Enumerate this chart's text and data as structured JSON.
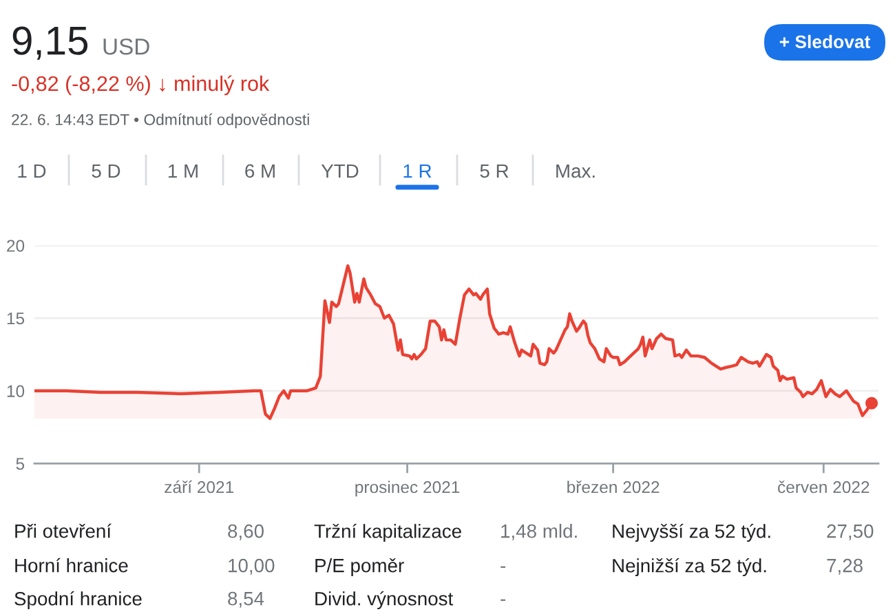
{
  "chart_data": [
    {
      "type": "other",
      "title": "9,15",
      "annotations": [
        "USD",
        "-0,82 (-8,22 %) ↓ minulý rok",
        "22. 6. 14:43 EDT • Odmítnutí odpovědnosti",
        "+ Sledovat",
        "1 D",
        "5 D",
        "1 M",
        "6 M",
        "YTD",
        "1 R",
        "5 R",
        "Max."
      ]
    },
    {
      "type": "area",
      "x": [
        "2021-06-21",
        "2021-07-05",
        "2021-07-20",
        "2021-08-05",
        "2021-08-24",
        "2021-09-10",
        "2021-09-25",
        "2021-09-28",
        "2021-09-30",
        "2021-10-02",
        "2021-10-04",
        "2021-10-06",
        "2021-10-08",
        "2021-10-10",
        "2021-10-11",
        "2021-10-18",
        "2021-10-22",
        "2021-10-24",
        "2021-10-26",
        "2021-10-28",
        "2021-10-29",
        "2021-10-31",
        "2021-11-01",
        "2021-11-03",
        "2021-11-05",
        "2021-11-06",
        "2021-11-08",
        "2021-11-09",
        "2021-11-10",
        "2021-11-12",
        "2021-11-13",
        "2021-11-15",
        "2021-11-17",
        "2021-11-19",
        "2021-11-21",
        "2021-11-23",
        "2021-11-25",
        "2021-11-27",
        "2021-11-28",
        "2021-11-29",
        "2021-12-02",
        "2021-12-03",
        "2021-12-04",
        "2021-12-05",
        "2021-12-07",
        "2021-12-09",
        "2021-12-11",
        "2021-12-13",
        "2021-12-15",
        "2021-12-16",
        "2021-12-17",
        "2021-12-18",
        "2021-12-20",
        "2021-12-22",
        "2021-12-24",
        "2021-12-26",
        "2021-12-28",
        "2021-12-30",
        "2021-12-31",
        "2022-01-02",
        "2022-01-03",
        "2022-01-05",
        "2022-01-06",
        "2022-01-08",
        "2022-01-10",
        "2022-01-12",
        "2022-01-14",
        "2022-01-15",
        "2022-01-17",
        "2022-01-19",
        "2022-01-20",
        "2022-01-22",
        "2022-01-24",
        "2022-01-25",
        "2022-01-27",
        "2022-01-28",
        "2022-01-30",
        "2022-01-31",
        "2022-02-01",
        "2022-02-03",
        "2022-02-04",
        "2022-02-06",
        "2022-02-08",
        "2022-02-09",
        "2022-02-10",
        "2022-02-11",
        "2022-02-13",
        "2022-02-14",
        "2022-02-16",
        "2022-02-17",
        "2022-02-18",
        "2022-02-19",
        "2022-02-21",
        "2022-02-23",
        "2022-02-25",
        "2022-02-26",
        "2022-02-28",
        "2022-03-01",
        "2022-03-03",
        "2022-03-04",
        "2022-03-06",
        "2022-03-08",
        "2022-03-10",
        "2022-03-12",
        "2022-03-13",
        "2022-03-14",
        "2022-03-15",
        "2022-03-17",
        "2022-03-18",
        "2022-03-20",
        "2022-03-22",
        "2022-03-24",
        "2022-03-27",
        "2022-03-28",
        "2022-03-30",
        "2022-03-31",
        "2022-04-02",
        "2022-04-04",
        "2022-04-07",
        "2022-04-10",
        "2022-04-13",
        "2022-04-17",
        "2022-04-19",
        "2022-04-22",
        "2022-04-24",
        "2022-04-26",
        "2022-04-29",
        "2022-05-01",
        "2022-05-03",
        "2022-05-04",
        "2022-05-07",
        "2022-05-09",
        "2022-05-10",
        "2022-05-12",
        "2022-05-13",
        "2022-05-14",
        "2022-05-16",
        "2022-05-19",
        "2022-05-20",
        "2022-05-22",
        "2022-05-23",
        "2022-05-25",
        "2022-05-27",
        "2022-05-29",
        "2022-05-31",
        "2022-06-02",
        "2022-06-04",
        "2022-06-06",
        "2022-06-08",
        "2022-06-11",
        "2022-06-14",
        "2022-06-16",
        "2022-06-18",
        "2022-06-20",
        "2022-06-22"
      ],
      "series": [
        {
          "type": "area",
          "color": "#e94235",
          "values": [
            10.0,
            10.0,
            9.9,
            9.9,
            9.8,
            9.9,
            10.0,
            10.0,
            8.4,
            8.1,
            8.8,
            9.6,
            10.0,
            9.5,
            10.0,
            10.0,
            10.2,
            11.0,
            16.2,
            14.7,
            16.1,
            15.8,
            16.0,
            17.3,
            18.6,
            18.1,
            16.1,
            16.7,
            16.1,
            17.7,
            17.1,
            16.6,
            16.0,
            15.8,
            15.0,
            15.2,
            14.6,
            12.8,
            13.5,
            12.5,
            12.4,
            12.2,
            12.5,
            12.2,
            12.5,
            12.9,
            14.8,
            14.8,
            14.4,
            13.5,
            14.2,
            13.5,
            13.5,
            13.2,
            15.0,
            16.6,
            17.0,
            16.6,
            16.7,
            16.3,
            16.6,
            17.0,
            15.3,
            14.3,
            13.9,
            14.0,
            13.9,
            14.4,
            13.3,
            12.4,
            12.8,
            12.6,
            12.4,
            13.2,
            12.8,
            11.9,
            11.8,
            12.0,
            12.9,
            12.6,
            12.8,
            13.5,
            14.2,
            14.4,
            15.3,
            14.8,
            14.1,
            14.3,
            14.8,
            14.6,
            13.8,
            13.3,
            12.9,
            12.2,
            12.0,
            12.9,
            12.4,
            12.3,
            12.3,
            11.8,
            12.0,
            12.3,
            12.6,
            12.9,
            13.2,
            13.7,
            12.4,
            13.5,
            12.9,
            13.6,
            13.9,
            13.6,
            13.5,
            12.4,
            12.5,
            12.3,
            12.8,
            12.4,
            12.4,
            12.3,
            11.9,
            11.5,
            11.6,
            11.7,
            11.8,
            12.3,
            12.0,
            11.9,
            12.0,
            11.7,
            12.5,
            12.3,
            11.7,
            11.4,
            10.7,
            11.0,
            10.8,
            10.9,
            10.2,
            9.9,
            9.6,
            9.9,
            9.8,
            10.1,
            10.7,
            9.6,
            10.1,
            9.8,
            9.6,
            10.0,
            9.3,
            9.1,
            8.3,
            8.7,
            9.15
          ]
        },
        {
          "type": "scatter",
          "x": [
            "2022-06-22"
          ],
          "values": [
            9.15
          ],
          "color": "#e94235",
          "marker": "circle"
        }
      ],
      "xlim": [
        "2021-06-21",
        "2022-06-25"
      ],
      "ylim": [
        5,
        20
      ],
      "yticks": [
        5,
        10,
        15,
        20
      ],
      "xticks": [
        {
          "value": "2021-09-01",
          "label": "září 2021"
        },
        {
          "value": "2021-12-01",
          "label": "prosinec 2021"
        },
        {
          "value": "2022-03-01",
          "label": "březen 2022"
        },
        {
          "value": "2022-06-01",
          "label": "červen 2022"
        }
      ],
      "grid": "y"
    },
    {
      "type": "other",
      "annotations": [
        "Při otevření",
        "8,60",
        "Tržní kapitalizace",
        "1,48 mld.",
        "Nejvyšší za 52 týd.",
        "27,50",
        "Horní hranice",
        "10,00",
        "P/E poměr",
        "-",
        "Nejnižší za 52 týd.",
        "7,28",
        "Spodní hranice",
        "8,54",
        "Divid. výnosnost",
        "-"
      ]
    }
  ]
}
